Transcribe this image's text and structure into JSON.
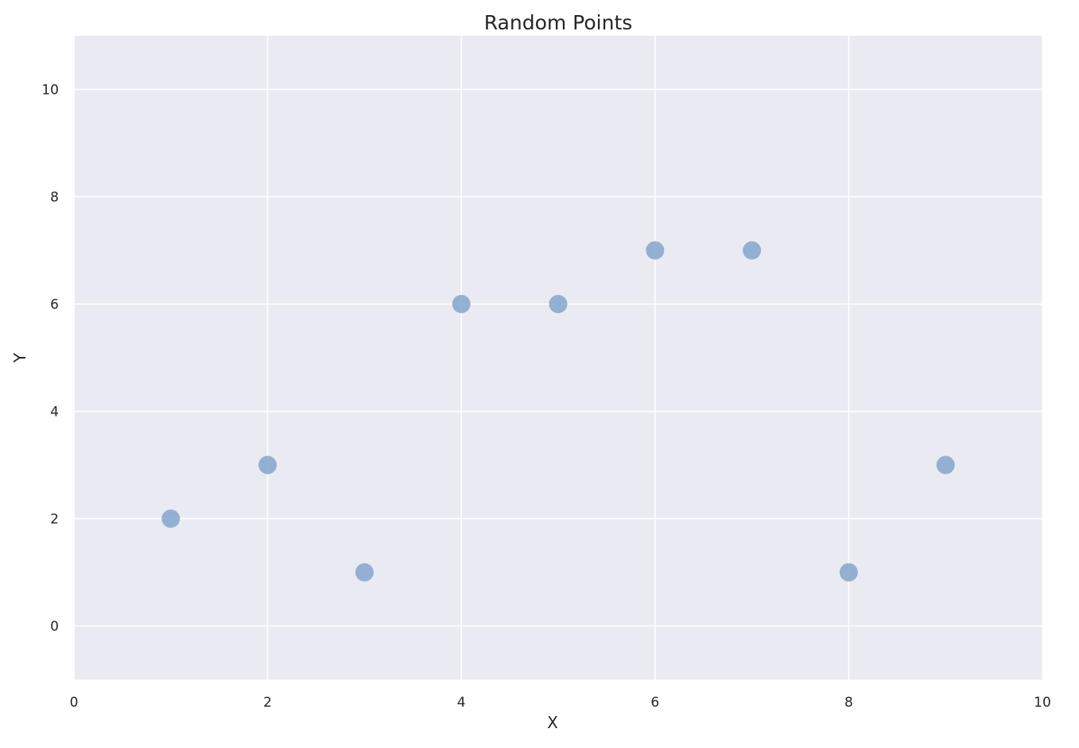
{
  "chart_data": {
    "type": "scatter",
    "title": "Random Points",
    "xlabel": "X",
    "ylabel": "Y",
    "xlim": [
      0,
      10
    ],
    "ylim": [
      -1,
      11
    ],
    "x_ticks": [
      0,
      2,
      4,
      6,
      8,
      10
    ],
    "y_ticks": [
      0,
      2,
      4,
      6,
      8,
      10
    ],
    "grid": true,
    "background_color": "#eaeaf2",
    "grid_color": "#ffffff",
    "point_color": "#7da0c8",
    "series": [
      {
        "x": [
          1,
          2,
          3,
          4,
          5,
          6,
          7,
          8,
          9
        ],
        "y": [
          2,
          3,
          1,
          6,
          6,
          7,
          7,
          1,
          3
        ]
      }
    ]
  }
}
